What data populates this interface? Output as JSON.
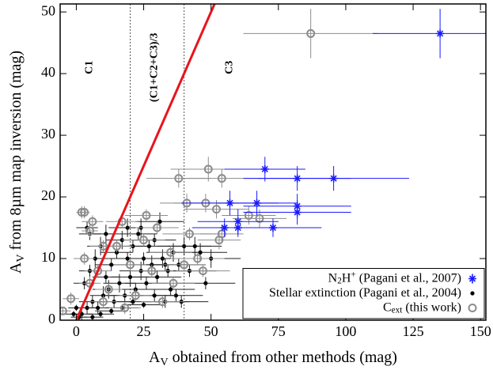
{
  "chart_data": {
    "type": "scatter",
    "x_label": [
      {
        "t": "A"
      },
      {
        "t": "V",
        "s": "sub"
      },
      {
        "t": " obtained from other methods (mag)"
      }
    ],
    "y_label": [
      {
        "t": "A"
      },
      {
        "t": "V",
        "s": "sub"
      },
      {
        "t": " from 8µm map inversion (mag)"
      }
    ],
    "xlim": [
      -6,
      152
    ],
    "ylim": [
      0,
      51.3
    ],
    "xticks": [
      0,
      25,
      50,
      75,
      100,
      125,
      150
    ],
    "yticks": [
      0,
      10,
      20,
      30,
      40,
      50
    ],
    "vlines": [
      20,
      40
    ],
    "reference_line": {
      "color": "#e8141c",
      "x": [
        0,
        51.3
      ],
      "values": [
        0,
        51.3
      ]
    },
    "annotations": [
      {
        "text": "C1",
        "x": 5,
        "y": 41
      },
      {
        "text": "(C1+C2+C3)/3",
        "x": 29,
        "y": 41
      },
      {
        "text": "C3",
        "x": 57,
        "y": 41
      }
    ],
    "legend": "lower right",
    "series": [
      {
        "name": [
          {
            "t": "Stellar extinction (Pagani et al., 2004)"
          }
        ],
        "color": "#000000",
        "marker": "dot",
        "x": [
          2,
          4,
          6,
          8,
          10,
          12,
          14,
          16,
          18,
          20,
          22,
          24,
          26,
          28,
          30,
          32,
          34,
          36,
          38,
          40,
          3,
          5,
          7,
          9,
          11,
          13,
          15,
          17,
          19,
          21,
          23,
          25,
          27,
          29,
          31,
          33,
          35,
          37,
          39,
          1,
          0,
          -1,
          6,
          9,
          13,
          17,
          21,
          25,
          29,
          33,
          44,
          46,
          42,
          48,
          50,
          5,
          4,
          11,
          19,
          24
        ],
        "values": [
          1,
          2,
          3,
          2,
          4,
          5,
          3,
          6,
          4,
          7,
          5,
          8,
          6,
          9,
          7,
          10,
          8,
          11,
          9,
          12,
          6,
          8,
          10,
          12,
          14,
          9,
          11,
          13,
          15,
          12,
          14,
          10,
          12,
          13,
          16,
          9,
          5,
          4,
          3,
          0.5,
          2,
          1,
          0.5,
          1,
          1.5,
          2,
          3,
          2.5,
          4,
          3,
          12,
          11,
          8,
          6,
          10,
          14,
          15,
          7,
          10,
          15
        ],
        "xerr": [
          4,
          4,
          5,
          5,
          5,
          6,
          6,
          6,
          7,
          7,
          7,
          8,
          8,
          8,
          9,
          9,
          9,
          10,
          10,
          10,
          4,
          4,
          5,
          5,
          5,
          6,
          6,
          6,
          7,
          7,
          7,
          8,
          8,
          8,
          9,
          9,
          9,
          10,
          10,
          3,
          3,
          3,
          4,
          5,
          6,
          6,
          7,
          8,
          8,
          9,
          10,
          10,
          10,
          11,
          11,
          4,
          4,
          5,
          7,
          8
        ],
        "yerr": [
          1,
          1,
          1,
          1,
          1.5,
          1.5,
          1,
          1.5,
          1,
          1.5,
          1,
          1.5,
          1,
          1.5,
          1,
          1.5,
          1,
          1.5,
          1,
          1.5,
          1,
          1,
          1.5,
          1.5,
          1.5,
          1,
          1,
          1.5,
          1.5,
          1,
          1,
          1,
          1,
          1,
          1.5,
          1,
          1,
          1,
          1,
          0.5,
          0.5,
          0.5,
          0.5,
          0.5,
          0.5,
          0.5,
          0.5,
          0.5,
          1,
          1,
          1.5,
          1.5,
          1,
          1,
          1.5,
          1,
          1,
          1,
          1,
          1.5
        ]
      },
      {
        "name": [
          {
            "t": "C"
          },
          {
            "t": "ext",
            "s": "sub"
          },
          {
            "t": " (this work)"
          }
        ],
        "color": "#8c8c8c",
        "marker": "circle",
        "x": [
          87,
          38,
          49,
          54,
          41,
          48,
          52,
          64,
          68,
          54,
          53,
          2,
          3,
          17,
          5,
          10,
          3,
          15,
          25,
          30,
          35,
          40,
          45,
          28,
          20,
          8,
          -2,
          -5,
          5,
          12,
          22,
          36,
          32,
          18,
          42,
          47,
          10,
          26,
          6
        ],
        "values": [
          46.5,
          23,
          24.5,
          23,
          19,
          19,
          18,
          17,
          16.5,
          14,
          13,
          17.5,
          17.5,
          16,
          14.5,
          12,
          10,
          12,
          13,
          15,
          11,
          9,
          10,
          8,
          9,
          8,
          3.5,
          1.5,
          6,
          5,
          4,
          6,
          3,
          2,
          14,
          8,
          3,
          17,
          16
        ],
        "xerr": [
          25,
          12,
          14,
          15,
          10,
          12,
          12,
          10,
          10,
          8,
          8,
          2,
          2,
          6,
          3,
          5,
          4,
          6,
          8,
          8,
          8,
          8,
          10,
          8,
          6,
          5,
          3,
          3,
          4,
          5,
          6,
          8,
          8,
          6,
          10,
          10,
          5,
          8,
          4
        ],
        "yerr": [
          4,
          1.5,
          2,
          1.5,
          1.5,
          1.5,
          1.5,
          1.5,
          1.5,
          1.5,
          1.5,
          1,
          1,
          1,
          1,
          1,
          1,
          1,
          1,
          1,
          1,
          1,
          1,
          1,
          1,
          1,
          1,
          0.5,
          1,
          1,
          1,
          1,
          1,
          1,
          1,
          1,
          1,
          1,
          1
        ]
      },
      {
        "name": [
          {
            "t": "N"
          },
          {
            "t": "2",
            "s": "sub"
          },
          {
            "t": "H"
          },
          {
            "t": "+",
            "s": "sup"
          },
          {
            "t": " (Pagani et al., 2007)"
          }
        ],
        "color": "#1a1aff",
        "marker": "star",
        "x": [
          135,
          70,
          82,
          95.5,
          57,
          67,
          82,
          82,
          60,
          60,
          73,
          55
        ],
        "values": [
          46.5,
          24.5,
          23,
          23,
          19,
          19,
          18.5,
          17.5,
          16,
          15,
          15,
          15
        ],
        "xerr": [
          25,
          15,
          20,
          28,
          18,
          15,
          20,
          20,
          15,
          15,
          18,
          12
        ],
        "yerr": [
          4,
          2,
          2,
          2,
          2,
          2,
          2,
          2,
          2,
          1.5,
          1.5,
          1.5
        ]
      }
    ]
  }
}
